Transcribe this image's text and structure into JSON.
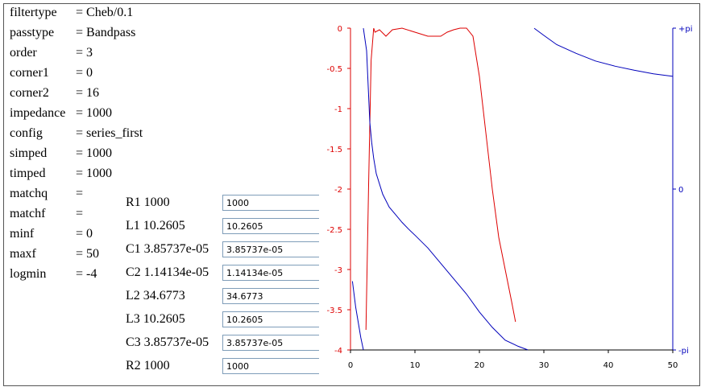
{
  "params": [
    {
      "key": "filtertype",
      "value": "= Cheb/0.1"
    },
    {
      "key": "passtype",
      "value": "= Bandpass"
    },
    {
      "key": "order",
      "value": "= 3"
    },
    {
      "key": "corner1",
      "value": "= 0"
    },
    {
      "key": "corner2",
      "value": "= 16"
    },
    {
      "key": "impedance",
      "value": "= 1000"
    },
    {
      "key": "config",
      "value": "= series_first"
    },
    {
      "key": "simped",
      "value": "= 1000"
    },
    {
      "key": "timped",
      "value": "= 1000"
    },
    {
      "key": "matchq",
      "value": "="
    },
    {
      "key": "matchf",
      "value": "="
    },
    {
      "key": "minf",
      "value": "= 0"
    },
    {
      "key": "maxf",
      "value": "= 50"
    },
    {
      "key": "logmin",
      "value": "= -4"
    }
  ],
  "components": [
    {
      "label": "R1 1000",
      "field": "1000"
    },
    {
      "label": "L1 10.2605",
      "field": "10.2605"
    },
    {
      "label": "C1 3.85737e-05",
      "field": "3.85737e-05"
    },
    {
      "label": "C2 1.14134e-05",
      "field": "1.14134e-05"
    },
    {
      "label": "L2 34.6773",
      "field": "34.6773"
    },
    {
      "label": "L3 10.2605",
      "field": "10.2605"
    },
    {
      "label": "C3 3.85737e-05",
      "field": "3.85737e-05"
    },
    {
      "label": "R2 1000",
      "field": "1000"
    }
  ],
  "chart_data": {
    "type": "line",
    "x_ticks": [
      "0",
      "10",
      "20",
      "30",
      "40",
      "50"
    ],
    "xlim": [
      0,
      50
    ],
    "y_left_ticks": [
      "0",
      "-0.5",
      "-1",
      "-1.5",
      "-2",
      "-2.5",
      "-3",
      "-3.5",
      "-4"
    ],
    "ylim_left": [
      -4,
      0
    ],
    "y_right_ticks": [
      "+pi",
      "0",
      "-pi"
    ],
    "ylim_right": [
      -3.14159,
      3.14159
    ],
    "colors": {
      "magnitude": "#dd0000",
      "phase": "#0000bb",
      "left_axis": "#dd0000",
      "right_axis": "#0000bb",
      "x_axis": "#000000"
    },
    "series": [
      {
        "axis": "left",
        "color": "magnitude",
        "x": [
          2.4,
          2.8,
          3.2,
          3.6,
          3.8,
          4.5,
          5.5,
          6.5,
          8,
          10,
          12,
          14,
          15,
          16,
          17,
          18,
          19,
          20,
          21,
          22,
          23,
          24,
          25,
          25.6
        ],
        "y": [
          -3.75,
          -2.0,
          -0.4,
          0.0,
          -0.05,
          -0.02,
          -0.1,
          -0.02,
          0.0,
          -0.05,
          -0.1,
          -0.1,
          -0.05,
          -0.02,
          0.0,
          0.0,
          -0.1,
          -0.6,
          -1.3,
          -2.0,
          -2.6,
          -3.0,
          -3.4,
          -3.65
        ]
      },
      {
        "axis": "right",
        "color": "phase",
        "x": [
          2.0,
          2.5,
          3.0,
          3.3,
          3.6,
          4,
          5,
          6,
          7,
          8,
          9,
          10,
          12,
          14,
          16,
          18,
          20,
          22,
          24,
          26,
          27.5
        ],
        "y": [
          3.14,
          2.7,
          1.3,
          0.9,
          0.6,
          0.3,
          -0.1,
          -0.35,
          -0.5,
          -0.65,
          -0.78,
          -0.9,
          -1.15,
          -1.45,
          -1.75,
          -2.05,
          -2.4,
          -2.7,
          -2.95,
          -3.07,
          -3.14
        ]
      },
      {
        "axis": "right",
        "color": "phase",
        "x": [
          28.5,
          30,
          32,
          35,
          38,
          41,
          44,
          47,
          50
        ],
        "y": [
          3.14,
          3.0,
          2.82,
          2.65,
          2.5,
          2.4,
          2.32,
          2.25,
          2.2
        ]
      },
      {
        "axis": "right",
        "color": "phase",
        "x": [
          0.3,
          0.8,
          1.2,
          1.6,
          2.0
        ],
        "y": [
          -1.8,
          -2.3,
          -2.6,
          -2.9,
          -3.14
        ]
      }
    ]
  }
}
